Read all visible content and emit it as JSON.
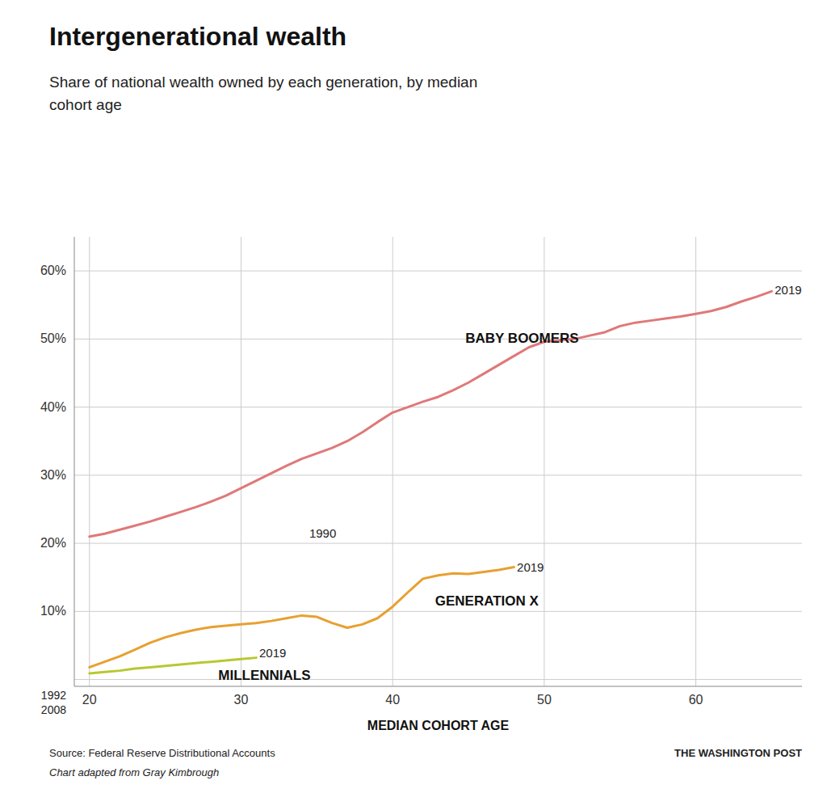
{
  "chart_data": {
    "type": "line",
    "title": "Intergenerational wealth",
    "subtitle": "Share of national wealth owned by each generation, by median\ncohort age",
    "xlabel": "MEDIAN COHORT AGE",
    "source_left1": "Source: Federal Reserve Distributional Accounts",
    "source_left2": "Chart adapted from Gray Kimbrough",
    "source_right": "THE WASHINGTON POST",
    "grid": true,
    "xlim": [
      19,
      67
    ],
    "ylim": [
      -0.01,
      0.65
    ],
    "xticks": [
      20,
      30,
      40,
      50,
      60
    ],
    "yticks": [
      {
        "value": 0.0,
        "label": null
      },
      {
        "value": 0.1,
        "label": "10%"
      },
      {
        "value": 0.2,
        "label": "20%"
      },
      {
        "value": 0.3,
        "label": "30%"
      },
      {
        "value": 0.4,
        "label": "40%"
      },
      {
        "value": 0.5,
        "label": "50%"
      },
      {
        "value": 0.6,
        "label": "60%"
      }
    ],
    "series": [
      {
        "name": "BABY BOOMERS",
        "color": "#e07878",
        "label_x": 44.8,
        "label_y": 0.49,
        "x": [
          20,
          21,
          22,
          23,
          24,
          25,
          26,
          27,
          28,
          29,
          30,
          31,
          32,
          33,
          34,
          35,
          36,
          37,
          38,
          39,
          40,
          41,
          42,
          43,
          44,
          45,
          46,
          47,
          48,
          49,
          50,
          51,
          52,
          53,
          54,
          55,
          56,
          57,
          58,
          59,
          60,
          61,
          62,
          63,
          64,
          65
        ],
        "values": [
          0.21,
          0.214,
          0.22,
          0.226,
          0.232,
          0.239,
          0.246,
          0.253,
          0.261,
          0.27,
          0.281,
          0.292,
          0.303,
          0.314,
          0.324,
          0.332,
          0.34,
          0.35,
          0.363,
          0.378,
          0.392,
          0.4,
          0.408,
          0.415,
          0.425,
          0.436,
          0.449,
          0.462,
          0.475,
          0.488,
          0.496,
          0.498,
          0.5,
          0.505,
          0.51,
          0.519,
          0.524,
          0.527,
          0.53,
          0.533,
          0.537,
          0.541,
          0.547,
          0.555,
          0.562,
          0.57
        ]
      },
      {
        "name": "GENERATION X",
        "color": "#e8a030",
        "label_x": 42.8,
        "label_y": 0.128,
        "x": [
          20,
          21,
          22,
          23,
          24,
          25,
          26,
          27,
          28,
          29,
          30,
          31,
          32,
          33,
          34,
          35,
          36,
          37,
          38,
          39,
          40,
          41,
          42,
          43,
          44,
          45,
          46,
          47,
          48
        ],
        "values": [
          0.018,
          0.026,
          0.034,
          0.044,
          0.054,
          0.062,
          0.068,
          0.073,
          0.077,
          0.079,
          0.081,
          0.083,
          0.086,
          0.09,
          0.094,
          0.092,
          0.083,
          0.076,
          0.081,
          0.09,
          0.107,
          0.128,
          0.148,
          0.153,
          0.156,
          0.155,
          0.158,
          0.161,
          0.165
        ]
      },
      {
        "name": "MILLENNIALS",
        "color": "#b8c830",
        "label_x": 28.5,
        "label_y": 0.018,
        "x": [
          20,
          21,
          22,
          23,
          24,
          25,
          26,
          27,
          28,
          29,
          30,
          31
        ],
        "values": [
          0.009,
          0.011,
          0.013,
          0.016,
          0.018,
          0.02,
          0.022,
          0.024,
          0.026,
          0.028,
          0.03,
          0.032
        ]
      }
    ],
    "annotations": [
      {
        "text": "1990",
        "x": 34.5,
        "y": 0.213
      },
      {
        "text": "2019",
        "x": 48.2,
        "y": 0.163
      },
      {
        "text": "2019",
        "x": 31.2,
        "y": 0.037
      },
      {
        "text": "2019",
        "x": 65.2,
        "y": 0.57
      },
      {
        "text": "1992"
      },
      {
        "text": "2008"
      }
    ]
  }
}
